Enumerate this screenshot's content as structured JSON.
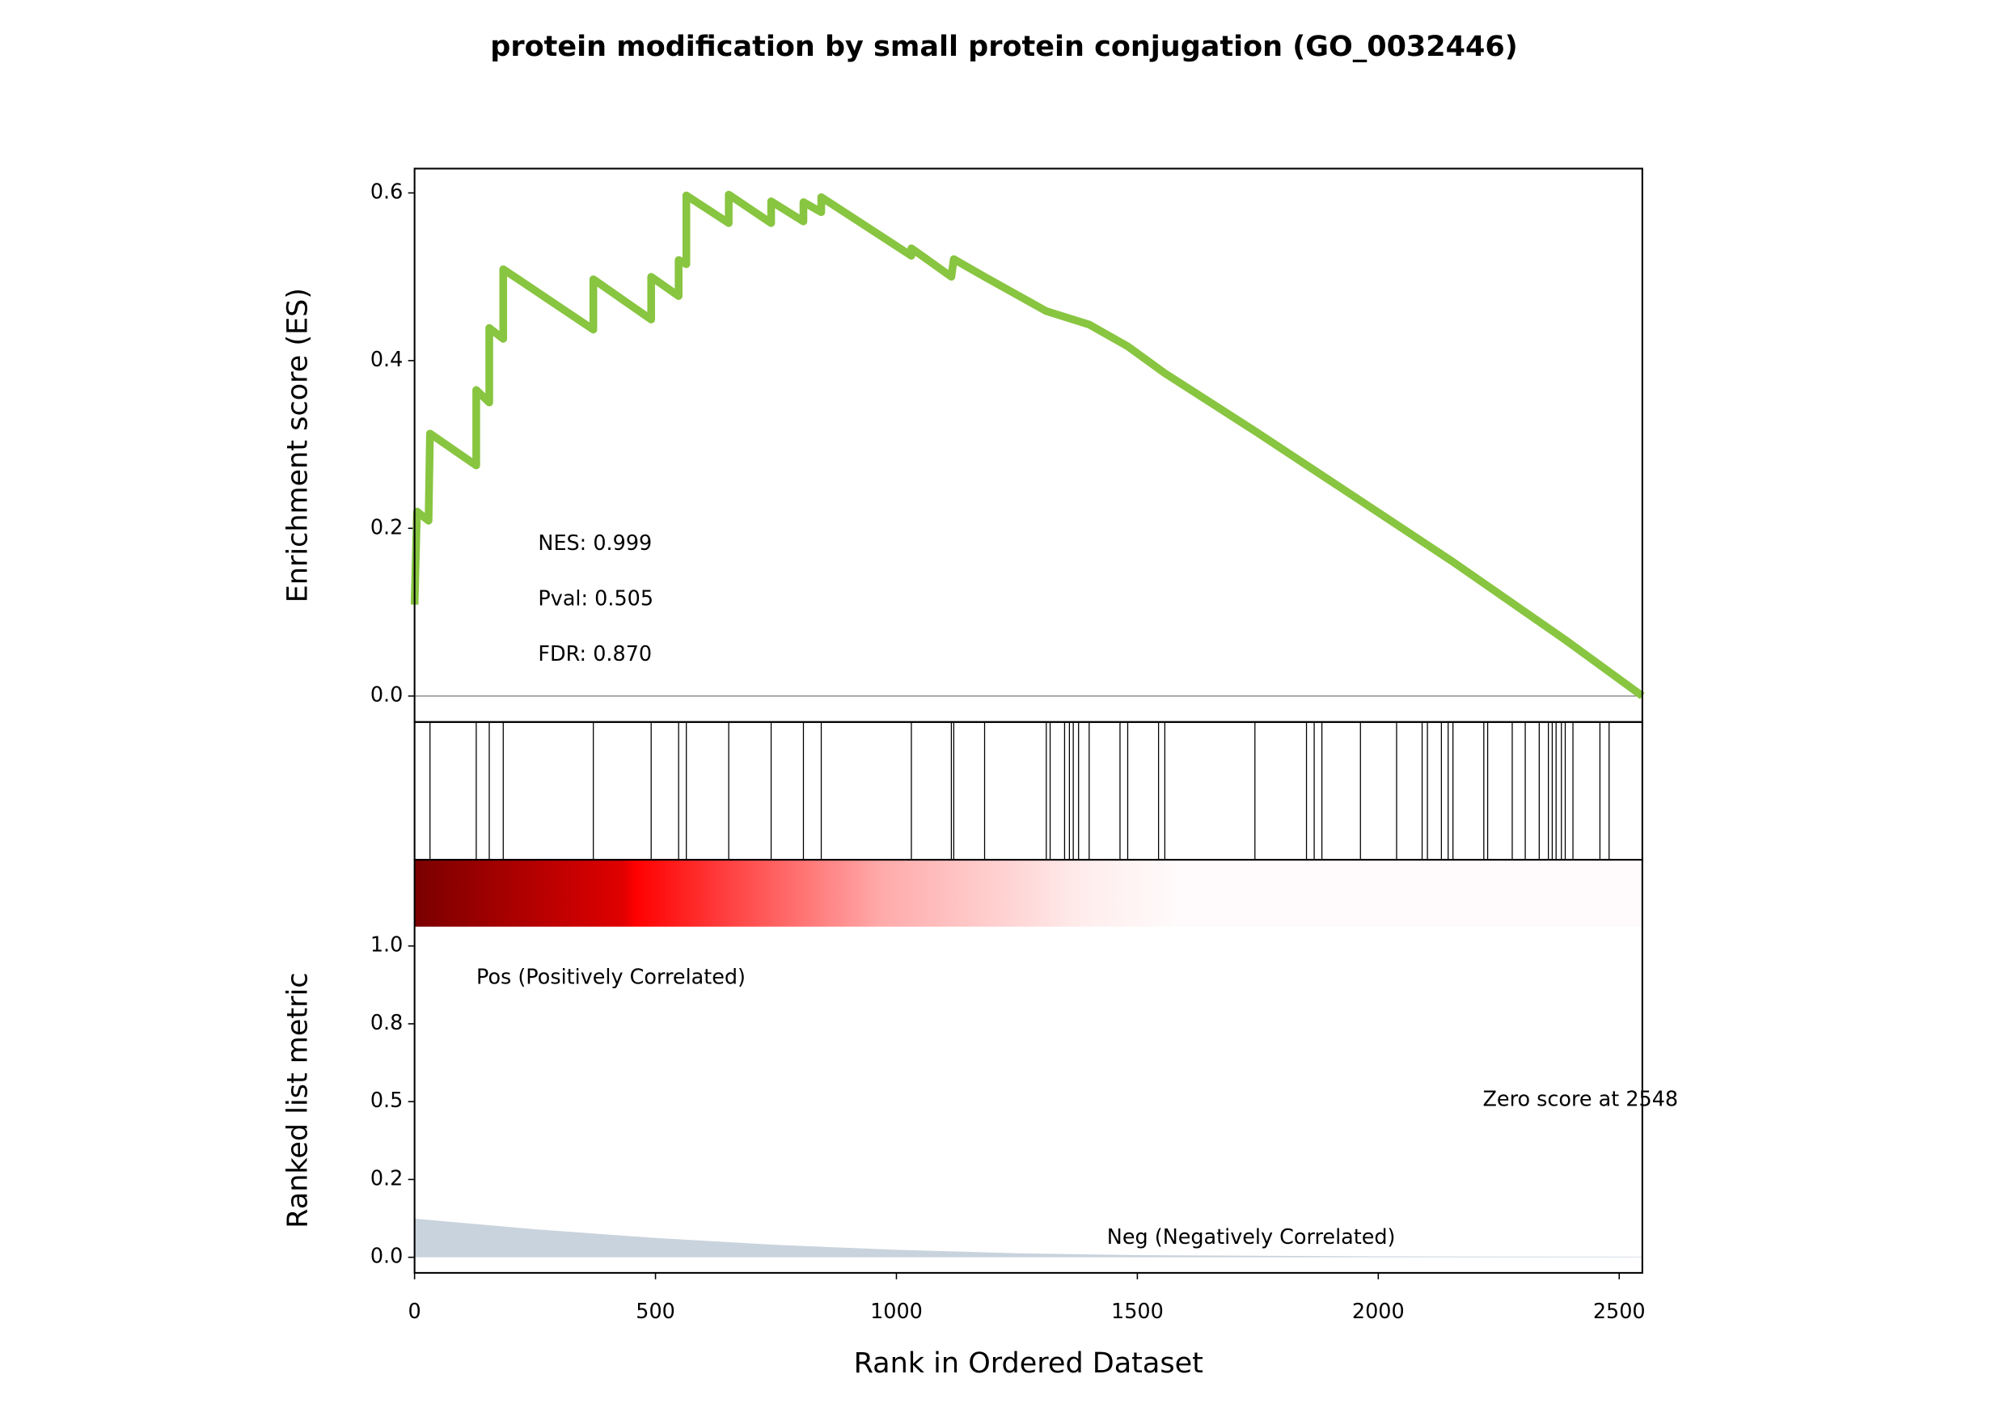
{
  "chart_data": {
    "type": "gsea",
    "title": "protein modification by small protein conjugation (GO_0032446)",
    "xlabel": "Rank in Ordered Dataset",
    "xlim": [
      0,
      2548
    ],
    "xticks": [
      0,
      500,
      1000,
      1500,
      2000,
      2500
    ],
    "es": {
      "ylabel": "Enrichment score (ES)",
      "ylim": [
        -0.031,
        0.629
      ],
      "yticks": [
        {
          "value": 0,
          "label": "0.0"
        },
        0.2,
        0.4,
        0.6
      ],
      "color": "#88c540",
      "x": [
        0,
        5,
        29,
        32,
        128,
        128,
        155,
        155,
        184,
        184,
        371,
        371,
        491,
        491,
        548,
        548,
        564,
        564,
        652,
        652,
        740,
        740,
        807,
        807,
        844,
        844,
        1031,
        1031,
        1114,
        1119,
        1183,
        1311,
        1400,
        1480,
        1557,
        1744,
        1963,
        2155,
        2388,
        2548
      ],
      "values": [
        0.109,
        0.22,
        0.209,
        0.313,
        0.275,
        0.365,
        0.35,
        0.439,
        0.426,
        0.509,
        0.437,
        0.497,
        0.449,
        0.5,
        0.477,
        0.52,
        0.515,
        0.597,
        0.564,
        0.598,
        0.564,
        0.59,
        0.566,
        0.589,
        0.577,
        0.595,
        0.525,
        0.534,
        0.5,
        0.521,
        0.5,
        0.459,
        0.443,
        0.417,
        0.385,
        0.316,
        0.233,
        0.16,
        0.067,
        0
      ],
      "annotations": [
        "NES: 0.999",
        "Pval: 0.505",
        "FDR: 0.870"
      ]
    },
    "hits": [
      32,
      128,
      155,
      184,
      371,
      491,
      548,
      564,
      652,
      740,
      807,
      844,
      1031,
      1114,
      1119,
      1183,
      1311,
      1319,
      1349,
      1359,
      1367,
      1378,
      1400,
      1464,
      1480,
      1544,
      1557,
      1744,
      1851,
      1867,
      1883,
      1963,
      2038,
      2091,
      2102,
      2131,
      2145,
      2155,
      2219,
      2227,
      2278,
      2305,
      2334,
      2353,
      2361,
      2369,
      2380,
      2388,
      2404,
      2460,
      2479
    ],
    "metric": {
      "ylabel": "Ranked list metric",
      "ylim": [
        -0.05,
        1.277
      ],
      "yticks": [
        {
          "value": 1,
          "label": "1.0"
        },
        {
          "value": 0.75,
          "label": "0.8"
        },
        0.5,
        {
          "value": 0.25,
          "label": "0.2"
        },
        {
          "value": 0,
          "label": "0.0"
        }
      ],
      "color": "#c9d3dd",
      "x": [
        0,
        250,
        500,
        750,
        1000,
        1250,
        1500,
        2000,
        2548
      ],
      "values": [
        0.124,
        0.09,
        0.062,
        0.04,
        0.024,
        0.013,
        0.007,
        0.003,
        0.002
      ],
      "pos_label": "Pos (Positively Correlated)",
      "neg_label": "Neg (Negatively Correlated)",
      "zero_label": "Zero score at 2548"
    }
  }
}
